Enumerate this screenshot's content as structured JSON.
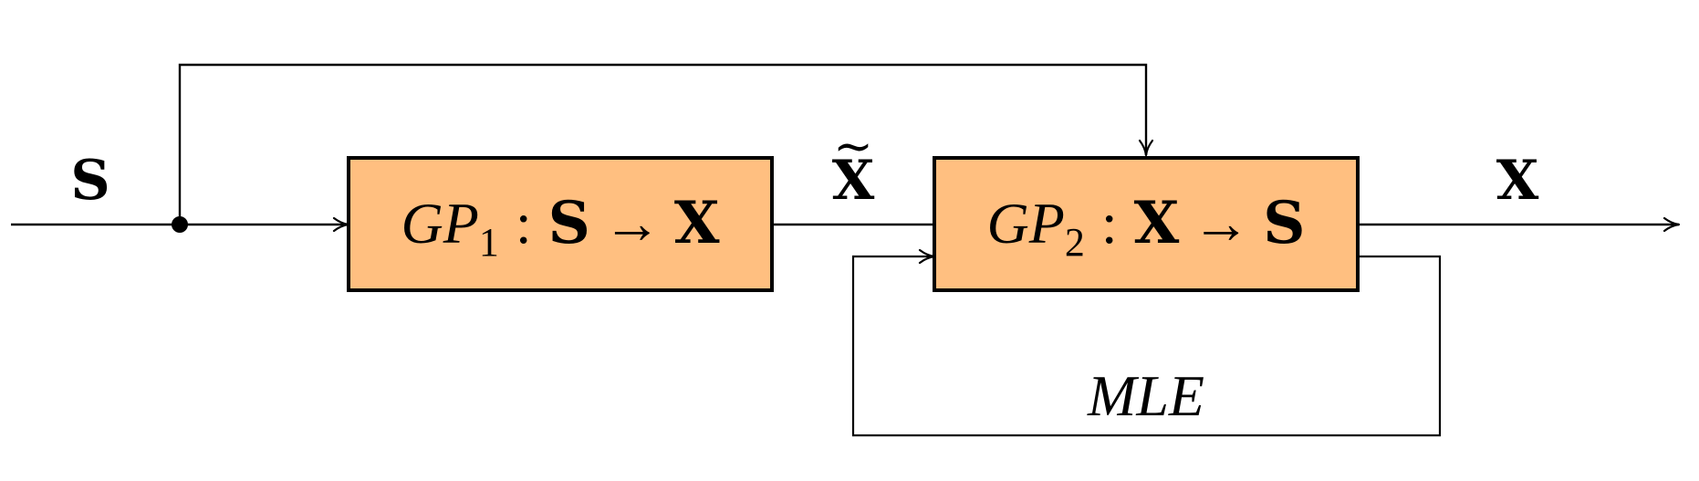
{
  "signals": {
    "input": "S",
    "intermediate": "X",
    "intermediate_accent": "~",
    "output": "X"
  },
  "block1": {
    "name": "GP",
    "subscript": "1",
    "colon": ":",
    "domain": "S",
    "arrow": "→",
    "codomain": "X"
  },
  "block2": {
    "name": "GP",
    "subscript": "2",
    "colon": ":",
    "domain": "X",
    "arrow": "→",
    "codomain": "S"
  },
  "feedback": {
    "label": "MLE"
  },
  "colors": {
    "block_fill": "#FFBF80",
    "stroke": "#000000",
    "background": "#FFFFFF"
  }
}
